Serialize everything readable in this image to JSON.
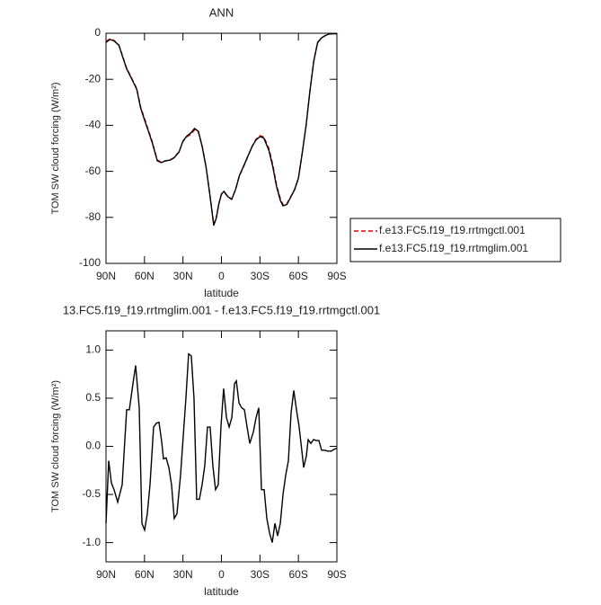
{
  "chart_data": [
    {
      "type": "line",
      "title": "ANN",
      "xlabel": "latitude",
      "ylabel": "TOM SW cloud forcing (W/m²)",
      "x": [
        90,
        87,
        84,
        80,
        77,
        74,
        70,
        66,
        63,
        60,
        57,
        54,
        50,
        47,
        44,
        40,
        37,
        33,
        30,
        27,
        24,
        21,
        18,
        15,
        12,
        9,
        6,
        4,
        2,
        0,
        -2,
        -5,
        -8,
        -11,
        -14,
        -18,
        -21,
        -24,
        -27,
        -30,
        -33,
        -37,
        -40,
        -43,
        -46,
        -48,
        -51,
        -54,
        -57,
        -60,
        -63,
        -66,
        -69,
        -72,
        -75,
        -78,
        -81,
        -84,
        -87,
        -90
      ],
      "series": [
        {
          "name": "f.e13.FC5.f19_f19.rrtmgctl.001",
          "color": "#e00000",
          "line_style": "dashed",
          "values": [
            -3.5,
            -2.5,
            -3,
            -5,
            -10,
            -15,
            -19.5,
            -24,
            -32,
            -37,
            -42,
            -47,
            -55,
            -56,
            -55.5,
            -55,
            -54,
            -51.5,
            -47,
            -45,
            -44,
            -42,
            -43,
            -49,
            -58,
            -70,
            -83,
            -80,
            -74,
            -70,
            -69,
            -71,
            -72,
            -68,
            -62,
            -57,
            -53,
            -49,
            -46,
            -44.5,
            -45,
            -50,
            -57,
            -66,
            -72,
            -74.5,
            -74,
            -71,
            -68,
            -63,
            -52,
            -40,
            -25,
            -12,
            -4,
            -2,
            -1,
            -0.3,
            -0.2,
            -0.2
          ]
        },
        {
          "name": "f.e13.FC5.f19_f19.rrtmglim.001",
          "color": "#000000",
          "line_style": "solid",
          "values": [
            -4,
            -2.7,
            -3.2,
            -5.2,
            -10.3,
            -15.3,
            -19.8,
            -24.4,
            -32.5,
            -37.6,
            -42.5,
            -47.5,
            -55.4,
            -56.2,
            -55.5,
            -55.1,
            -54.2,
            -51.5,
            -46.8,
            -44.7,
            -43.4,
            -41.4,
            -42.6,
            -49.3,
            -58.2,
            -70.3,
            -83.5,
            -80.3,
            -74.1,
            -69.8,
            -68.7,
            -71,
            -72.2,
            -67.9,
            -61.8,
            -56.8,
            -52.9,
            -49.1,
            -46.3,
            -44.9,
            -45.5,
            -50.9,
            -57.9,
            -66.7,
            -72.8,
            -75,
            -74.4,
            -71.2,
            -68,
            -63,
            -52,
            -40,
            -25,
            -12,
            -4,
            -2,
            -1,
            -0.3,
            -0.2,
            -0.2
          ]
        }
      ],
      "xlim": [
        90,
        -90
      ],
      "xticks": [
        {
          "value": 90,
          "label": "90N"
        },
        {
          "value": 60,
          "label": "60N"
        },
        {
          "value": 30,
          "label": "30N"
        },
        0,
        {
          "value": -30,
          "label": "30S"
        },
        {
          "value": -60,
          "label": "60S"
        },
        {
          "value": -90,
          "label": "90S"
        }
      ],
      "ylim": [
        -100,
        0
      ],
      "yticks": [
        0,
        -20,
        -40,
        -60,
        -80,
        -100
      ],
      "legend": "right"
    },
    {
      "type": "line",
      "title": "13.FC5.f19_f19.rrtmglim.001 - f.e13.FC5.f19_f19.rrtmgctl.001",
      "xlabel": "latitude",
      "ylabel": "TOM SW cloud forcing (W/m²)",
      "x": [
        90,
        87.9,
        85.8,
        83.7,
        80.9,
        77.4,
        73.9,
        71.8,
        69.0,
        66.9,
        64.1,
        62.0,
        59.9,
        57.8,
        55.7,
        52.9,
        50.8,
        48.7,
        46.6,
        45.2,
        43.1,
        41.0,
        38.9,
        36.8,
        34.7,
        31.9,
        29.8,
        27.7,
        25.6,
        23.5,
        21.4,
        19.3,
        17.2,
        15.1,
        13.0,
        10.9,
        8.8,
        6.7,
        4.6,
        2.5,
        0.4,
        -1.7,
        -3.9,
        -6.0,
        -8.1,
        -10.2,
        -11.6,
        -13.7,
        -15.8,
        -17.9,
        -20.0,
        -22.1,
        -24.9,
        -27.0,
        -29.1,
        -31.2,
        -33.3,
        -35.4,
        -37.5,
        -39.6,
        -41.7,
        -43.8,
        -45.9,
        -48.0,
        -50.1,
        -52.2,
        -54.3,
        -56.4,
        -58.5,
        -60.6,
        -62.7,
        -64.1,
        -66.2,
        -67.6,
        -69.7,
        -71.8,
        -73.9,
        -76.0,
        -78.1,
        -80.2,
        -83.0,
        -85.8,
        -87.9,
        -90
      ],
      "series": [
        {
          "color": "#000000",
          "line_style": "solid",
          "values": [
            -0.8,
            -0.15,
            -0.38,
            -0.45,
            -0.58,
            -0.4,
            0.38,
            0.38,
            0.65,
            0.84,
            0.4,
            -0.8,
            -0.87,
            -0.7,
            -0.4,
            0.2,
            0.24,
            0.25,
            0.05,
            -0.13,
            -0.12,
            -0.22,
            -0.4,
            -0.75,
            -0.7,
            -0.3,
            0.1,
            0.5,
            0.96,
            0.94,
            0.5,
            -0.55,
            -0.55,
            -0.4,
            -0.2,
            0.2,
            0.2,
            -0.2,
            -0.45,
            -0.4,
            0.2,
            0.6,
            0.3,
            0.2,
            0.3,
            0.65,
            0.68,
            0.45,
            0.4,
            0.38,
            0.2,
            0.03,
            0.15,
            0.3,
            0.4,
            -0.45,
            -0.45,
            -0.75,
            -0.9,
            -1.0,
            -0.8,
            -0.93,
            -0.8,
            -0.5,
            -0.3,
            -0.15,
            0.35,
            0.58,
            0.38,
            0.2,
            -0.05,
            -0.22,
            -0.1,
            0.07,
            0.03,
            0.07,
            0.06,
            0.06,
            -0.04,
            -0.04,
            -0.05,
            -0.05,
            -0.03,
            -0.02
          ]
        }
      ],
      "xlim": [
        90,
        -90
      ],
      "xticks": [
        {
          "value": 90,
          "label": "90N"
        },
        {
          "value": 60,
          "label": "60N"
        },
        {
          "value": 30,
          "label": "30N"
        },
        0,
        {
          "value": -30,
          "label": "30S"
        },
        {
          "value": -60,
          "label": "60S"
        },
        {
          "value": -90,
          "label": "90S"
        }
      ],
      "ylim": [
        -1.2,
        1.2
      ],
      "yticks": [
        {
          "value": 1.0,
          "label": "1.0"
        },
        0.5,
        {
          "value": 0.0,
          "label": "0.0"
        },
        -0.5,
        {
          "value": -1.0,
          "label": "-1.0"
        }
      ]
    }
  ]
}
